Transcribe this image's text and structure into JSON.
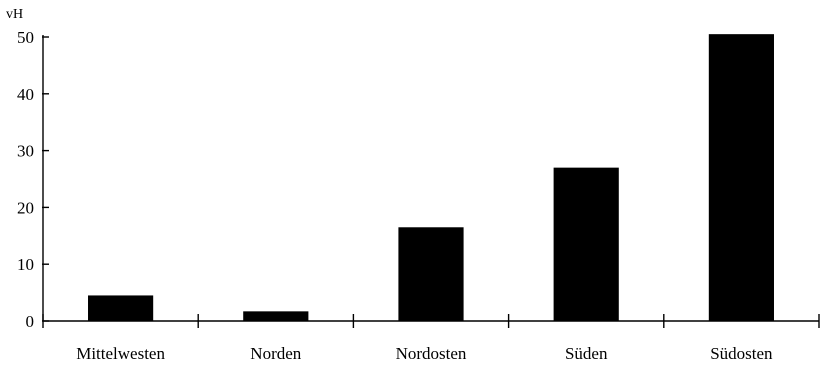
{
  "chart_data": {
    "type": "bar",
    "title": "",
    "xlabel": "",
    "ylabel": "vH",
    "categories": [
      "Mittelwesten",
      "Norden",
      "Nordosten",
      "Süden",
      "Südosten"
    ],
    "values": [
      4.5,
      1.7,
      16.5,
      27,
      50.5
    ],
    "ylim": [
      0,
      50
    ],
    "yticks": [
      0,
      10,
      20,
      30,
      40,
      50
    ],
    "ytick_labels": [
      "0",
      "10",
      "20",
      "30",
      "40",
      "50"
    ],
    "grid": false,
    "legend": "none",
    "bar_color": "#000000",
    "axis_color": "#000000"
  }
}
